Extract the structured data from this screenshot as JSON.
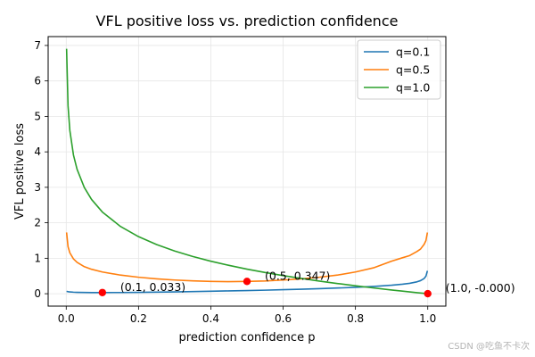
{
  "chart_data": {
    "type": "line",
    "title": "VFL positive loss vs. prediction confidence",
    "xlabel": "prediction confidence  p",
    "ylabel": "VFL positive loss",
    "xlim": [
      -0.05,
      1.05
    ],
    "ylim": [
      -0.35,
      7.25
    ],
    "xticks": [
      0.0,
      0.2,
      0.4,
      0.6,
      0.8,
      1.0
    ],
    "xtick_labels": [
      "0.0",
      "0.2",
      "0.4",
      "0.6",
      "0.8",
      "1.0"
    ],
    "yticks": [
      0,
      1,
      2,
      3,
      4,
      5,
      6,
      7
    ],
    "ytick_labels": [
      "0",
      "1",
      "2",
      "3",
      "4",
      "5",
      "6",
      "7"
    ],
    "grid": true,
    "legend_position": "top-right",
    "series": [
      {
        "name": "q=0.1",
        "color": "#1f77b4",
        "x": [
          0.001,
          0.005,
          0.01,
          0.02,
          0.03,
          0.05,
          0.07,
          0.1,
          0.15,
          0.2,
          0.25,
          0.3,
          0.35,
          0.4,
          0.45,
          0.5,
          0.55,
          0.6,
          0.65,
          0.7,
          0.75,
          0.8,
          0.85,
          0.9,
          0.93,
          0.95,
          0.97,
          0.98,
          0.99,
          0.995,
          0.999
        ],
        "values": [
          0.069,
          0.057,
          0.05,
          0.043,
          0.039,
          0.035,
          0.033,
          0.033,
          0.034,
          0.038,
          0.045,
          0.052,
          0.06,
          0.069,
          0.079,
          0.089,
          0.1,
          0.113,
          0.127,
          0.142,
          0.16,
          0.181,
          0.206,
          0.24,
          0.268,
          0.294,
          0.335,
          0.369,
          0.43,
          0.495,
          0.645
        ]
      },
      {
        "name": "q=0.5",
        "color": "#ff7f0e",
        "x": [
          0.001,
          0.005,
          0.01,
          0.02,
          0.03,
          0.05,
          0.07,
          0.1,
          0.15,
          0.2,
          0.25,
          0.3,
          0.35,
          0.4,
          0.45,
          0.5,
          0.55,
          0.6,
          0.65,
          0.7,
          0.75,
          0.8,
          0.85,
          0.9,
          0.93,
          0.95,
          0.97,
          0.98,
          0.99,
          0.995,
          0.999
        ],
        "values": [
          1.727,
          1.327,
          1.154,
          0.983,
          0.884,
          0.763,
          0.689,
          0.612,
          0.525,
          0.465,
          0.42,
          0.386,
          0.362,
          0.347,
          0.34,
          0.347,
          0.359,
          0.386,
          0.42,
          0.465,
          0.525,
          0.612,
          0.73,
          0.917,
          1.014,
          1.076,
          1.19,
          1.259,
          1.393,
          1.5,
          1.727
        ]
      },
      {
        "name": "q=1.0",
        "color": "#2ca02c",
        "x": [
          0.001,
          0.005,
          0.01,
          0.02,
          0.03,
          0.05,
          0.07,
          0.1,
          0.15,
          0.2,
          0.25,
          0.3,
          0.35,
          0.4,
          0.45,
          0.5,
          0.55,
          0.6,
          0.65,
          0.7,
          0.75,
          0.8,
          0.85,
          0.9,
          0.93,
          0.95,
          0.97,
          0.98,
          0.99,
          0.995,
          0.999
        ],
        "values": [
          6.908,
          5.298,
          4.605,
          3.912,
          3.507,
          2.996,
          2.659,
          2.303,
          1.897,
          1.609,
          1.386,
          1.204,
          1.05,
          0.916,
          0.799,
          0.693,
          0.598,
          0.511,
          0.431,
          0.357,
          0.288,
          0.223,
          0.163,
          0.105,
          0.073,
          0.051,
          0.03,
          0.02,
          0.01,
          0.005,
          0.001
        ]
      }
    ],
    "highlight_points": {
      "color": "#ff0000",
      "points": [
        {
          "x": 0.1,
          "y": 0.033,
          "label": "(0.1, 0.033)"
        },
        {
          "x": 0.5,
          "y": 0.347,
          "label": "(0.5, 0.347)"
        },
        {
          "x": 1.0,
          "y": 0.0,
          "label": "(1.0, -0.000)"
        }
      ]
    }
  },
  "watermark": "CSDN @吃鱼不卡次"
}
